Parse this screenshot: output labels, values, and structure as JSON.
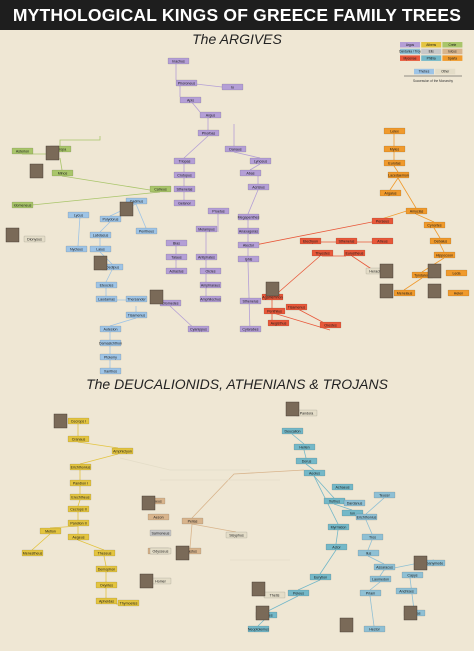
{
  "header": {
    "title": "MYTHOLOGICAL KINGS OF GREECE FAMILY TREES"
  },
  "sections": {
    "argives": "The ARGIVES",
    "deucalionids": "The DEUCALIONIDS, ATHENIANS & TROJANS"
  },
  "legend": {
    "items": [
      {
        "label": "Argos",
        "color": "#b49fd6"
      },
      {
        "label": "Athens",
        "color": "#e3c440"
      },
      {
        "label": "Crete",
        "color": "#a9c56a"
      },
      {
        "label": "Dardania / Troy",
        "color": "#8fc0d4"
      },
      {
        "label": "Elis",
        "color": "#c8c8c8"
      },
      {
        "label": "Iolcus",
        "color": "#d8b48c"
      },
      {
        "label": "Mycenae",
        "color": "#e8583a"
      },
      {
        "label": "Phthia",
        "color": "#74b8c8"
      },
      {
        "label": "Sparta",
        "color": "#f09a2c"
      },
      {
        "label": "Thebes",
        "color": "#9ec4e6"
      },
      {
        "label": "Other",
        "color": "#e4ddc8"
      }
    ],
    "caption": "Succession of the Monarchy"
  },
  "colors": {
    "argos": "#b49fd6",
    "athens": "#e3c440",
    "crete": "#a9c56a",
    "troy": "#8fc0d4",
    "sparta": "#f09a2c",
    "mycenae": "#e8583a",
    "thebes": "#9ec4e6",
    "phthia": "#74b8c8",
    "elis": "#c8c8c8",
    "iolcus": "#d8b48c",
    "other": "#e4ddc8"
  },
  "argives": [
    {
      "name": "Inachus",
      "house": "argos"
    },
    {
      "name": "Phoroneus",
      "house": "argos"
    },
    {
      "name": "Io",
      "house": "argos"
    },
    {
      "name": "Apis",
      "house": "argos"
    },
    {
      "name": "Argus",
      "house": "argos"
    },
    {
      "name": "Phorbas",
      "house": "argos"
    },
    {
      "name": "Triopas",
      "house": "argos"
    },
    {
      "name": "Crotopus",
      "house": "argos"
    },
    {
      "name": "Sthenelas",
      "house": "argos"
    },
    {
      "name": "Gelanor",
      "house": "argos"
    },
    {
      "name": "Danaus",
      "house": "argos"
    },
    {
      "name": "Lynceus",
      "house": "argos"
    },
    {
      "name": "Abas",
      "house": "argos"
    },
    {
      "name": "Acrisius",
      "house": "argos"
    },
    {
      "name": "Proetus",
      "house": "argos"
    },
    {
      "name": "Megapenthes",
      "house": "argos"
    },
    {
      "name": "Anaxagoras",
      "house": "argos"
    },
    {
      "name": "Alector",
      "house": "argos"
    },
    {
      "name": "Iphis",
      "house": "argos"
    },
    {
      "name": "Melampus",
      "house": "argos"
    },
    {
      "name": "Bias",
      "house": "argos"
    },
    {
      "name": "Talaus",
      "house": "argos"
    },
    {
      "name": "Adrastus",
      "house": "argos"
    },
    {
      "name": "Antiphates",
      "house": "argos"
    },
    {
      "name": "Oicles",
      "house": "argos"
    },
    {
      "name": "Amphiaraus",
      "house": "argos"
    },
    {
      "name": "Amphilochus",
      "house": "argos"
    },
    {
      "name": "Diomedes",
      "house": "argos"
    },
    {
      "name": "Sthenelus",
      "house": "argos"
    },
    {
      "name": "Cyanippus",
      "house": "argos"
    },
    {
      "name": "Cylarabes",
      "house": "argos"
    },
    {
      "name": "Europa",
      "house": "crete"
    },
    {
      "name": "Asterion",
      "house": "crete"
    },
    {
      "name": "Minos",
      "house": "crete"
    },
    {
      "name": "Catreus",
      "house": "crete"
    },
    {
      "name": "Idomeneus",
      "house": "crete"
    },
    {
      "name": "Cadmus",
      "house": "thebes"
    },
    {
      "name": "Polydorus",
      "house": "thebes"
    },
    {
      "name": "Pentheus",
      "house": "thebes"
    },
    {
      "name": "Labdacus",
      "house": "thebes"
    },
    {
      "name": "Laius",
      "house": "thebes"
    },
    {
      "name": "Oedipus",
      "house": "thebes"
    },
    {
      "name": "Eteocles",
      "house": "thebes"
    },
    {
      "name": "Laodamas",
      "house": "thebes"
    },
    {
      "name": "Thersander",
      "house": "thebes"
    },
    {
      "name": "Tisamenus",
      "house": "thebes"
    },
    {
      "name": "Autesion",
      "house": "thebes"
    },
    {
      "name": "Damasichthon",
      "house": "thebes"
    },
    {
      "name": "Ptolemy",
      "house": "thebes"
    },
    {
      "name": "Xanthos",
      "house": "thebes"
    },
    {
      "name": "Lycus",
      "house": "thebes"
    },
    {
      "name": "Nycteus",
      "house": "thebes"
    },
    {
      "name": "Dionysus",
      "house": "other"
    },
    {
      "name": "Perseus",
      "house": "mycenae"
    },
    {
      "name": "Electryon",
      "house": "mycenae"
    },
    {
      "name": "Sthenelus",
      "house": "mycenae"
    },
    {
      "name": "Eurystheus",
      "house": "mycenae"
    },
    {
      "name": "Atreus",
      "house": "mycenae"
    },
    {
      "name": "Thyestes",
      "house": "mycenae"
    },
    {
      "name": "Agamemnon",
      "house": "mycenae"
    },
    {
      "name": "Aegisthus",
      "house": "mycenae"
    },
    {
      "name": "Orestes",
      "house": "mycenae"
    },
    {
      "name": "Tisamenus",
      "house": "mycenae"
    },
    {
      "name": "Penthilus",
      "house": "mycenae"
    },
    {
      "name": "Heracles",
      "house": "other"
    },
    {
      "name": "Lelex",
      "house": "sparta"
    },
    {
      "name": "Myles",
      "house": "sparta"
    },
    {
      "name": "Eurotas",
      "house": "sparta"
    },
    {
      "name": "Lacedaemon",
      "house": "sparta"
    },
    {
      "name": "Amyclas",
      "house": "sparta"
    },
    {
      "name": "Argalus",
      "house": "sparta"
    },
    {
      "name": "Cynortes",
      "house": "sparta"
    },
    {
      "name": "Oebalus",
      "house": "sparta"
    },
    {
      "name": "Hippocoon",
      "house": "sparta"
    },
    {
      "name": "Tyndareus",
      "house": "sparta"
    },
    {
      "name": "Menelaus",
      "house": "sparta"
    },
    {
      "name": "Helen",
      "house": "sparta"
    },
    {
      "name": "Leda",
      "house": "sparta"
    }
  ],
  "deucalionids": [
    {
      "name": "Cecrops I",
      "house": "athens"
    },
    {
      "name": "Cranaus",
      "house": "athens"
    },
    {
      "name": "Amphictyon",
      "house": "athens"
    },
    {
      "name": "Erichthonius",
      "house": "athens"
    },
    {
      "name": "Pandion I",
      "house": "athens"
    },
    {
      "name": "Erechtheus",
      "house": "athens"
    },
    {
      "name": "Cecrops II",
      "house": "athens"
    },
    {
      "name": "Pandion II",
      "house": "athens"
    },
    {
      "name": "Aegeus",
      "house": "athens"
    },
    {
      "name": "Metion",
      "house": "athens"
    },
    {
      "name": "Menestheus",
      "house": "athens"
    },
    {
      "name": "Theseus",
      "house": "athens"
    },
    {
      "name": "Demophon",
      "house": "athens"
    },
    {
      "name": "Oxyntes",
      "house": "athens"
    },
    {
      "name": "Apheidas",
      "house": "athens"
    },
    {
      "name": "Thymoetes",
      "house": "athens"
    },
    {
      "name": "Deucalion",
      "house": "phthia"
    },
    {
      "name": "Hellen",
      "house": "phthia"
    },
    {
      "name": "Dorus",
      "house": "phthia"
    },
    {
      "name": "Aeolus",
      "house": "phthia"
    },
    {
      "name": "Xuthus",
      "house": "phthia"
    },
    {
      "name": "Achaeus",
      "house": "phthia"
    },
    {
      "name": "Ion",
      "house": "phthia"
    },
    {
      "name": "Myrmidon",
      "house": "phthia"
    },
    {
      "name": "Actor",
      "house": "phthia"
    },
    {
      "name": "Eurytion",
      "house": "phthia"
    },
    {
      "name": "Peleus",
      "house": "phthia"
    },
    {
      "name": "Achilles",
      "house": "phthia"
    },
    {
      "name": "Neoptolemus",
      "house": "phthia"
    },
    {
      "name": "Salmoneus",
      "house": "elis"
    },
    {
      "name": "Cretheus",
      "house": "iolcus"
    },
    {
      "name": "Aeson",
      "house": "iolcus"
    },
    {
      "name": "Pelias",
      "house": "iolcus"
    },
    {
      "name": "Jason",
      "house": "iolcus"
    },
    {
      "name": "Acastus",
      "house": "iolcus"
    },
    {
      "name": "Sisyphus",
      "house": "other"
    },
    {
      "name": "Odysseus",
      "house": "other"
    },
    {
      "name": "Homer",
      "house": "other"
    },
    {
      "name": "Thetis",
      "house": "other"
    },
    {
      "name": "Pandora",
      "house": "other"
    },
    {
      "name": "Teucer",
      "house": "troy"
    },
    {
      "name": "Dardanus",
      "house": "troy"
    },
    {
      "name": "Erichthonius",
      "house": "troy"
    },
    {
      "name": "Tros",
      "house": "troy"
    },
    {
      "name": "Ilus",
      "house": "troy"
    },
    {
      "name": "Assaracus",
      "house": "troy"
    },
    {
      "name": "Ganymede",
      "house": "troy"
    },
    {
      "name": "Laomedon",
      "house": "troy"
    },
    {
      "name": "Capys",
      "house": "troy"
    },
    {
      "name": "Priam",
      "house": "troy"
    },
    {
      "name": "Anchises",
      "house": "troy"
    },
    {
      "name": "Hector",
      "house": "troy"
    },
    {
      "name": "Aeneas",
      "house": "troy"
    }
  ]
}
